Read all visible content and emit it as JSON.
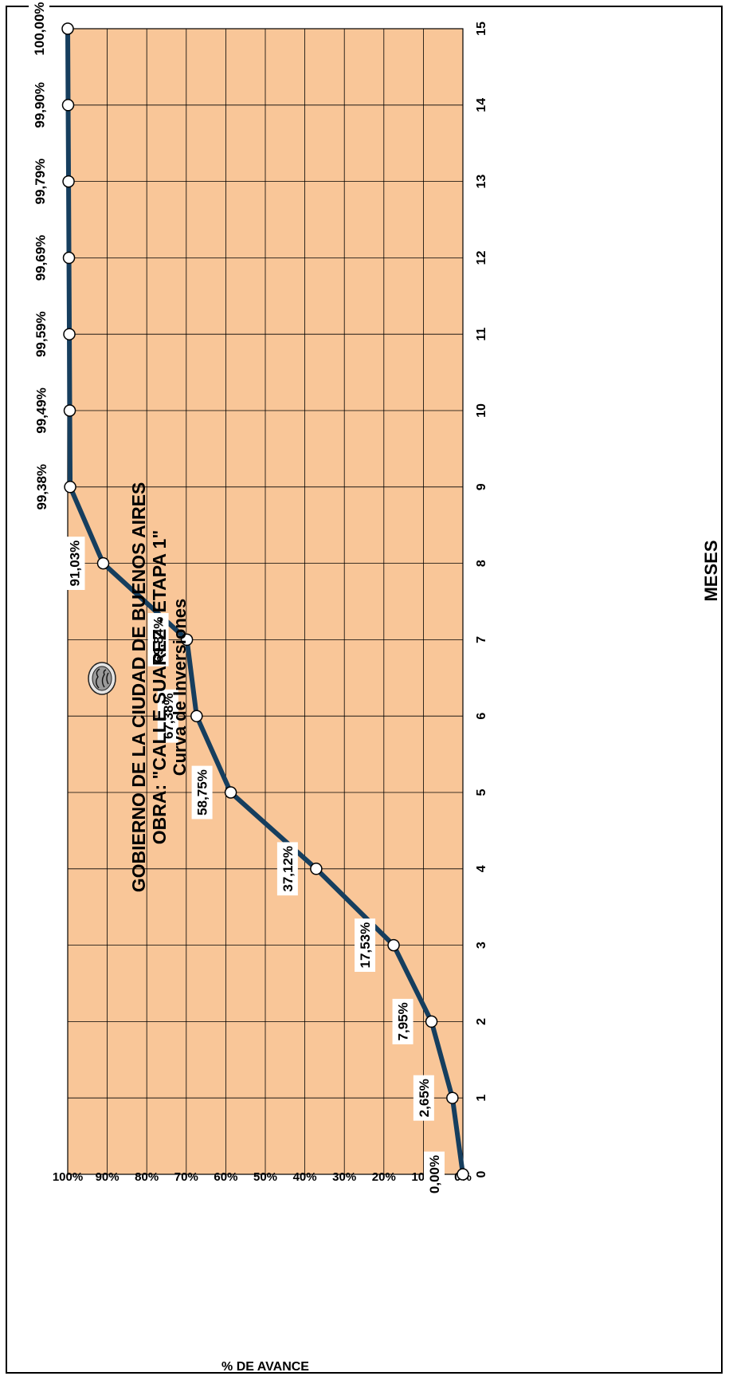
{
  "chart_data": {
    "type": "line",
    "title": "GOBIERNO DE LA CIUDAD DE BUENOS AIRES",
    "subtitle_1": "OBRA:  \"CALLE SUAREZ - ETAPA 1\"",
    "subtitle_2": "Curva de Inversiones",
    "xlabel": "MESES",
    "ylabel": "% DE AVANCE",
    "x": [
      0,
      1,
      2,
      3,
      4,
      5,
      6,
      7,
      8,
      9,
      10,
      11,
      12,
      13,
      14,
      15
    ],
    "series": [
      {
        "values": [
          0.0,
          2.65,
          7.95,
          17.53,
          37.12,
          58.75,
          67.38,
          69.84,
          91.03,
          99.38,
          99.49,
          99.59,
          99.69,
          99.79,
          99.9,
          100.0
        ],
        "labels": [
          "0,00%",
          "2,65%",
          "7,95%",
          "17,53%",
          "37,12%",
          "58,75%",
          "67,38%",
          "69,84%",
          "91,03%",
          "99,38%",
          "99,49%",
          "99,59%",
          "99,69%",
          "99,79%",
          "99,90%",
          "100,00%"
        ]
      }
    ],
    "xlim": [
      0,
      15
    ],
    "ylim": [
      0,
      100
    ],
    "xticks": [
      "0",
      "1",
      "2",
      "3",
      "4",
      "5",
      "6",
      "7",
      "8",
      "9",
      "10",
      "11",
      "12",
      "13",
      "14",
      "15"
    ],
    "yticks": [
      "0%",
      "10%",
      "20%",
      "30%",
      "40%",
      "50%",
      "60%",
      "70%",
      "80%",
      "90%",
      "100%"
    ],
    "grid": true,
    "colors": {
      "plot_bg": "#F9C698",
      "line": "#163E5E",
      "marker_fill": "#FFFFFF",
      "grid": "#000000"
    }
  },
  "logo": {
    "icon": "city-seal-icon"
  }
}
